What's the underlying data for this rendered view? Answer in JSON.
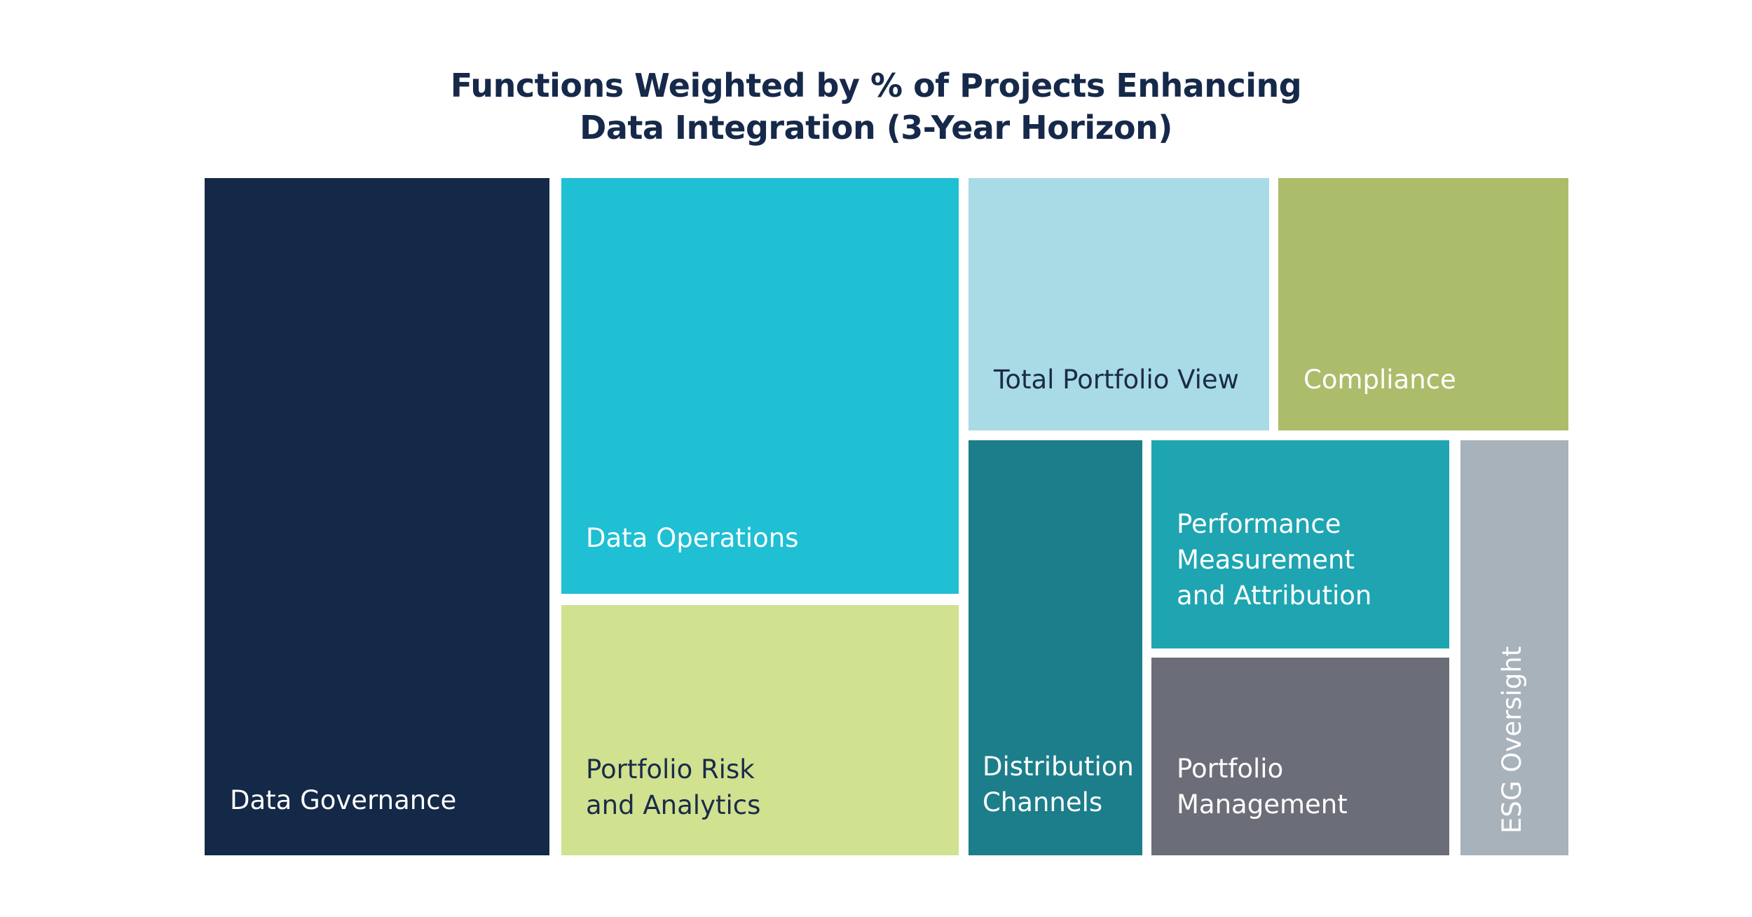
{
  "chart_data": {
    "type": "treemap",
    "title_lines": [
      "Functions Weighted by % of Projects Enhancing",
      "Data Integration (3-Year Horizon)"
    ],
    "items": [
      {
        "name": "Data Governance",
        "lines": [
          "Data Governance"
        ],
        "color": "#142847",
        "text_color": "#ffffff"
      },
      {
        "name": "Data Operations",
        "lines": [
          "Data Operations"
        ],
        "color": "#1fbfd4",
        "text_color": "#ffffff"
      },
      {
        "name": "Portfolio Risk and Analytics",
        "lines": [
          "Portfolio Risk",
          "and Analytics"
        ],
        "color": "#d0e190",
        "text_color": "#1b2b48"
      },
      {
        "name": "Total Portfolio View",
        "lines": [
          "Total Portfolio View"
        ],
        "color": "#a8dbe5",
        "text_color": "#1b2b48"
      },
      {
        "name": "Compliance",
        "lines": [
          "Compliance"
        ],
        "color": "#abbd6b",
        "text_color": "#ffffff"
      },
      {
        "name": "Distribution Channels",
        "lines": [
          "Distribution",
          "Channels"
        ],
        "color": "#1c7e8a",
        "text_color": "#ffffff"
      },
      {
        "name": "Performance Measurement and Attribution",
        "lines": [
          "Performance",
          "Measurement",
          "and Attribution"
        ],
        "color": "#1ea5b1",
        "text_color": "#ffffff"
      },
      {
        "name": "Portfolio Management",
        "lines": [
          "Portfolio",
          "Management"
        ],
        "color": "#6b6e78",
        "text_color": "#ffffff"
      },
      {
        "name": "ESG Oversight",
        "lines": [
          "ESG Oversight"
        ],
        "color": "#a8b2bb",
        "text_color": "#ffffff"
      }
    ]
  }
}
